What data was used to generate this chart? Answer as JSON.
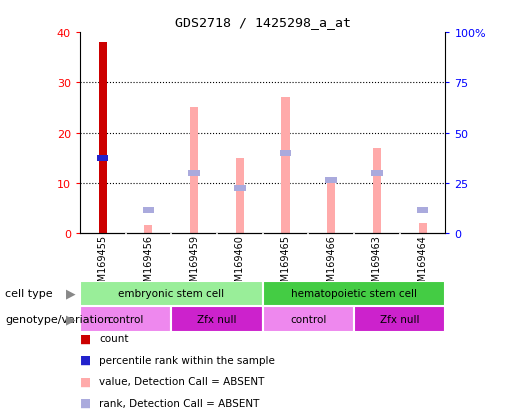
{
  "title": "GDS2718 / 1425298_a_at",
  "samples": [
    "GSM169455",
    "GSM169456",
    "GSM169459",
    "GSM169460",
    "GSM169465",
    "GSM169466",
    "GSM169463",
    "GSM169464"
  ],
  "count_values": [
    38,
    0,
    0,
    0,
    0,
    0,
    0,
    0
  ],
  "count_color": "#cc0000",
  "percentile_rank_value": 15,
  "percentile_rank_index": 0,
  "percentile_rank_color": "#2222cc",
  "absent_value_bars": [
    0,
    1.5,
    25,
    15,
    27,
    10.5,
    17,
    2
  ],
  "absent_rank_bars": [
    0,
    4.5,
    12,
    9,
    16,
    10.5,
    12,
    4.5
  ],
  "absent_value_color": "#ffaaaa",
  "absent_rank_color": "#aaaadd",
  "ylim": [
    0,
    40
  ],
  "yticks_left": [
    0,
    10,
    20,
    30,
    40
  ],
  "yticks_right": [
    0,
    25,
    50,
    75,
    100
  ],
  "cell_type_groups": [
    {
      "label": "embryonic stem cell",
      "start": 0,
      "end": 4,
      "color": "#99ee99"
    },
    {
      "label": "hematopoietic stem cell",
      "start": 4,
      "end": 8,
      "color": "#44cc44"
    }
  ],
  "genotype_groups": [
    {
      "label": "control",
      "start": 0,
      "end": 2,
      "color": "#ee88ee"
    },
    {
      "label": "Zfx null",
      "start": 2,
      "end": 4,
      "color": "#cc22cc"
    },
    {
      "label": "control",
      "start": 4,
      "end": 6,
      "color": "#ee88ee"
    },
    {
      "label": "Zfx null",
      "start": 6,
      "end": 8,
      "color": "#cc22cc"
    }
  ],
  "cell_type_label": "cell type",
  "genotype_label": "genotype/variation",
  "legend_items": [
    {
      "label": "count",
      "color": "#cc0000"
    },
    {
      "label": "percentile rank within the sample",
      "color": "#2222cc"
    },
    {
      "label": "value, Detection Call = ABSENT",
      "color": "#ffaaaa"
    },
    {
      "label": "rank, Detection Call = ABSENT",
      "color": "#aaaadd"
    }
  ],
  "bar_width": 0.18,
  "background_color": "#ffffff"
}
